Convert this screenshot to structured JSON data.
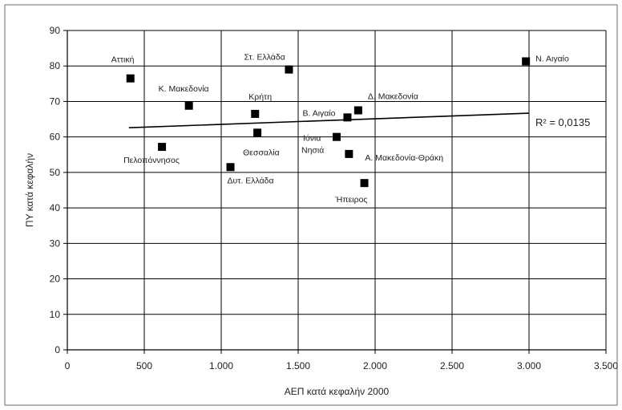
{
  "chart_data": {
    "type": "scatter",
    "xlabel": "ΑΕΠ κατά κεφαλήν 2000",
    "ylabel": "ΠΥ κατά κεφαλήν",
    "xlim": [
      0,
      3500
    ],
    "ylim": [
      0,
      90
    ],
    "x_ticks": [
      0,
      500,
      1000,
      1500,
      2000,
      2500,
      3000,
      3500
    ],
    "x_tick_labels": [
      "0",
      "500",
      "1.000",
      "1.500",
      "2.000",
      "2.500",
      "3.000",
      "3.500"
    ],
    "y_ticks": [
      0,
      10,
      20,
      30,
      40,
      50,
      60,
      70,
      80,
      90
    ],
    "y_tick_labels": [
      "0",
      "10",
      "20",
      "30",
      "40",
      "50",
      "60",
      "70",
      "80",
      "90"
    ],
    "grid": true,
    "marker_color": "#000000",
    "points": [
      {
        "label": "Αττική",
        "x": 410,
        "y": 76.5
      },
      {
        "label": "Κ. Μακεδονία",
        "x": 790,
        "y": 68.8
      },
      {
        "label": "Πελοπόννησος",
        "x": 615,
        "y": 57.2
      },
      {
        "label": "Δυτ. Ελλάδα",
        "x": 1060,
        "y": 51.5
      },
      {
        "label": "Κρήτη",
        "x": 1220,
        "y": 66.5
      },
      {
        "label": "Θεσσαλία",
        "x": 1235,
        "y": 61.2
      },
      {
        "label": "Στ. Ελλάδα",
        "x": 1440,
        "y": 79.0
      },
      {
        "label": "Ιόνια Νησιά",
        "x": 1750,
        "y": 60.0
      },
      {
        "label": "Β. Αιγαίο",
        "x": 1820,
        "y": 65.5
      },
      {
        "label": "Δ. Μακεδονία",
        "x": 1890,
        "y": 67.5
      },
      {
        "label": "Α. Μακεδονία-Θράκη",
        "x": 1830,
        "y": 55.2
      },
      {
        "label": "Ήπειρος",
        "x": 1930,
        "y": 47.0
      },
      {
        "label": "Ν. Αιγαίο",
        "x": 2980,
        "y": 81.3
      }
    ],
    "trendline": {
      "type": "linear",
      "x": [
        400,
        3000
      ],
      "y": [
        62.6,
        66.7
      ]
    },
    "annotation": "R² = 0,0135"
  }
}
